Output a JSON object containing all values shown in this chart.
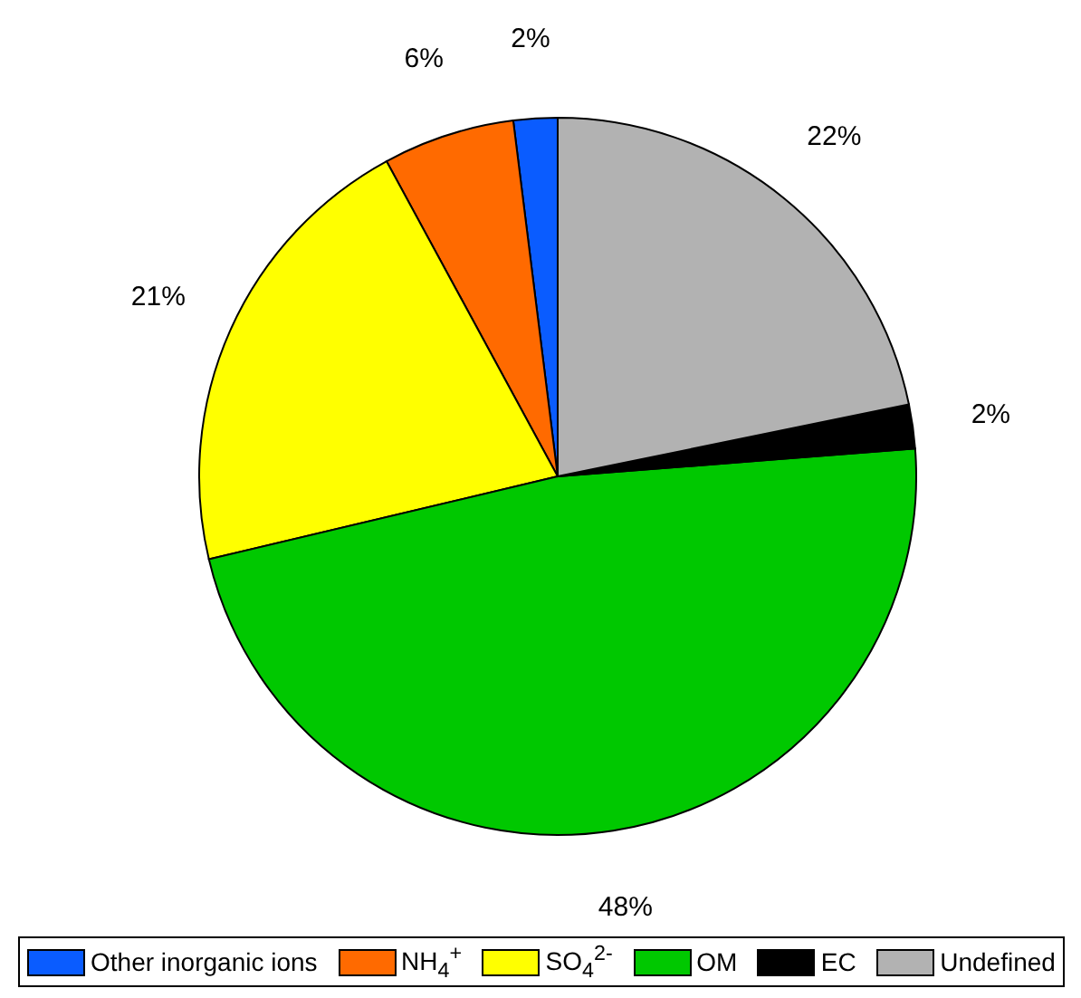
{
  "chart_data": {
    "type": "pie",
    "categories": [
      "Other inorganic ions",
      "NH$_{4}$$^{+}$",
      "SO$_{4}$$^{2-}$",
      "OM",
      "EC",
      "Undefined"
    ],
    "values": [
      2,
      6,
      21,
      48,
      2,
      22
    ],
    "value_labels": [
      "2%",
      "6%",
      "21%",
      "48%",
      "2%",
      "22%"
    ],
    "colors": [
      "#0a5cff",
      "#ff6a00",
      "#ffff00",
      "#00c800",
      "#000000",
      "#b2b2b2"
    ],
    "legend": "bottom"
  }
}
